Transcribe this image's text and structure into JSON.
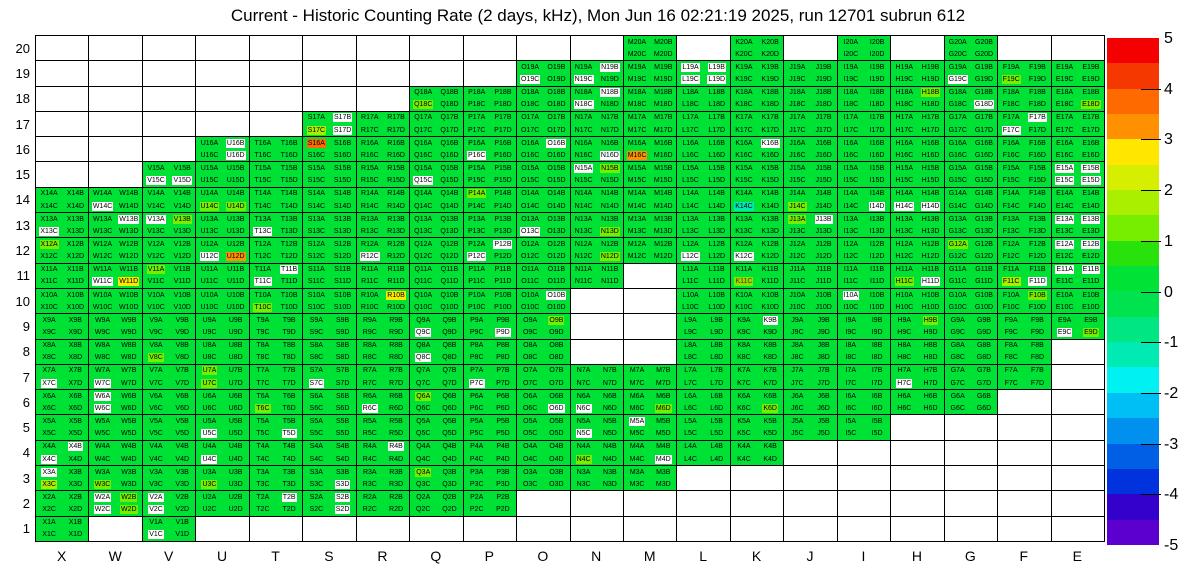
{
  "title": "Current - Historic Counting Rate (2 days, kHz), Mon Jun 16 02:21:19 2025, run 12701 subrun 612",
  "axis": {
    "x_labels": [
      "X",
      "W",
      "V",
      "U",
      "T",
      "S",
      "R",
      "Q",
      "P",
      "O",
      "N",
      "M",
      "L",
      "K",
      "J",
      "I",
      "H",
      "G",
      "F",
      "E"
    ],
    "y_labels": [
      "20",
      "19",
      "18",
      "17",
      "16",
      "15",
      "14",
      "13",
      "12",
      "11",
      "10",
      "9",
      "8",
      "7",
      "6",
      "5",
      "4",
      "3",
      "2",
      "1"
    ]
  },
  "colorbar": {
    "tick_labels": [
      "5",
      "4",
      "3",
      "2",
      "1",
      "0",
      "-1",
      "-2",
      "-3",
      "-4",
      "-5"
    ],
    "min": -5,
    "max": 5,
    "bands_top_to_bottom": [
      "#f40000",
      "#f43800",
      "#ff6a00",
      "#ff9100",
      "#ffe700",
      "#d6ef00",
      "#aaee00",
      "#77ee00",
      "#2ae20b",
      "#00e236",
      "#00e24e",
      "#00e683",
      "#00eab4",
      "#00f1f1",
      "#00bff4",
      "#0290ef",
      "#005fe4",
      "#0033dd",
      "#3300cc",
      "#5b00cf"
    ]
  },
  "grid": {
    "suffixes": [
      "A",
      "B",
      "C",
      "D"
    ],
    "default_color": "#00e136",
    "line_color": "#000000",
    "palette": {
      "white": "#ffffff",
      "chartreuse": "#77ee00",
      "yellowgreen": "#aaee00",
      "yellow": "#ffe700",
      "orange": "#ff9100",
      "deeporange": "#ff6a00",
      "cyan": "#00eab4"
    },
    "columns": [
      {
        "letter": "X",
        "rows": [
          [
            1,
            14
          ]
        ]
      },
      {
        "letter": "W",
        "rows": [
          [
            2,
            14
          ]
        ]
      },
      {
        "letter": "V",
        "rows": [
          [
            1,
            15
          ]
        ]
      },
      {
        "letter": "U",
        "rows": [
          [
            2,
            16
          ]
        ]
      },
      {
        "letter": "T",
        "rows": [
          [
            2,
            16
          ]
        ]
      },
      {
        "letter": "S",
        "rows": [
          [
            2,
            17
          ]
        ]
      },
      {
        "letter": "R",
        "rows": [
          [
            2,
            17
          ]
        ]
      },
      {
        "letter": "Q",
        "rows": [
          [
            2,
            18
          ]
        ]
      },
      {
        "letter": "P",
        "rows": [
          [
            2,
            18
          ]
        ]
      },
      {
        "letter": "O",
        "rows": [
          [
            3,
            19
          ]
        ]
      },
      {
        "letter": "N",
        "rows": [
          [
            3,
            7
          ],
          [
            11,
            19
          ]
        ]
      },
      {
        "letter": "M",
        "rows": [
          [
            3,
            7
          ],
          [
            12,
            20
          ]
        ]
      },
      {
        "letter": "L",
        "rows": [
          [
            4,
            19
          ]
        ]
      },
      {
        "letter": "K",
        "rows": [
          [
            4,
            20
          ]
        ]
      },
      {
        "letter": "J",
        "rows": [
          [
            5,
            19
          ]
        ]
      },
      {
        "letter": "I",
        "rows": [
          [
            5,
            20
          ]
        ]
      },
      {
        "letter": "H",
        "rows": [
          [
            6,
            19
          ]
        ]
      },
      {
        "letter": "G",
        "rows": [
          [
            6,
            20
          ]
        ]
      },
      {
        "letter": "F",
        "rows": [
          [
            7,
            19
          ]
        ]
      },
      {
        "letter": "E",
        "rows": [
          [
            9,
            19
          ]
        ]
      }
    ],
    "chips": {
      "white": [
        "O19C",
        "N19B",
        "N19C",
        "L19A",
        "L19B",
        "L19C",
        "L19D",
        "G19C",
        "N18B",
        "N18C",
        "G18D",
        "S17B",
        "S17D",
        "F17B",
        "F17C",
        "U16B",
        "U16D",
        "P16C",
        "O16B",
        "N16D",
        "K16B",
        "V15C",
        "V15D",
        "Q15C",
        "N15A",
        "E15A",
        "E15B",
        "E15C",
        "E15D",
        "W14C",
        "I14D",
        "H14C",
        "H14D",
        "X13C",
        "W13B",
        "V13A",
        "T13C",
        "O13C",
        "J13B",
        "E13A",
        "E13B",
        "U12C",
        "R12C",
        "P12B",
        "P12C",
        "L12C",
        "K12C",
        "E12A",
        "E12B",
        "W11C",
        "T11B",
        "T11C",
        "H11D",
        "F11D",
        "E11A",
        "E11B",
        "O10B",
        "I10A",
        "Q9C",
        "P9D",
        "K9B",
        "E9C",
        "Q8C",
        "X7C",
        "W7C",
        "S7C",
        "P7C",
        "H7C",
        "W6A",
        "W6C",
        "R6C",
        "O6D",
        "N6C",
        "U5C",
        "T5D",
        "N5C",
        "M5A",
        "X4B",
        "X4C",
        "U4C",
        "R4B",
        "M4D",
        "X3A",
        "S3D",
        "W2A",
        "W2C",
        "V2A",
        "V2C",
        "T2B",
        "S2B",
        "S2D",
        "V1C"
      ],
      "chartreuse": [
        "F19C",
        "Q18C",
        "H18B",
        "E18D",
        "U14C",
        "U14D",
        "J14C",
        "P14A",
        "N15B",
        "J13A",
        "N13D",
        "V13B",
        "X12A",
        "G12A",
        "N12D",
        "V11A",
        "H11C",
        "K11C",
        "T10C",
        "F10B",
        "O9B",
        "H9B",
        "E9D",
        "V8C",
        "U7A",
        "U7C",
        "T6C",
        "Q6A",
        "M6D",
        "K6D",
        "N4C",
        "Q3A",
        "W3C",
        "U3C",
        "W2B",
        "W2D"
      ],
      "yellowgreen": [
        "S17C",
        "F11C",
        "X3C"
      ],
      "yellow": [
        "W11D",
        "R10B"
      ],
      "orange": [
        "M16C",
        "U12D"
      ],
      "deeporange": [
        "S16A"
      ],
      "cyan": [
        "K14C"
      ]
    },
    "text_colors": {
      "K11C": "#bb0000"
    }
  },
  "chart_data": {
    "type": "heatmap",
    "title": "Current - Historic Counting Rate (2 days, kHz), Mon Jun 16 02:21:19 2025, run 12701 subrun 612",
    "x_categories": [
      "X",
      "W",
      "V",
      "U",
      "T",
      "S",
      "R",
      "Q",
      "P",
      "O",
      "N",
      "M",
      "L",
      "K",
      "J",
      "I",
      "H",
      "G",
      "F",
      "E"
    ],
    "y_categories": [
      1,
      2,
      3,
      4,
      5,
      6,
      7,
      8,
      9,
      10,
      11,
      12,
      13,
      14,
      15,
      16,
      17,
      18,
      19,
      20
    ],
    "value_scale": {
      "min": -5,
      "max": 5,
      "units": "kHz difference"
    },
    "cells_present_row_ranges": {
      "X": [
        [
          1,
          14
        ]
      ],
      "W": [
        [
          2,
          14
        ]
      ],
      "V": [
        [
          1,
          15
        ]
      ],
      "U": [
        [
          2,
          16
        ]
      ],
      "T": [
        [
          2,
          16
        ]
      ],
      "S": [
        [
          2,
          17
        ]
      ],
      "R": [
        [
          2,
          17
        ]
      ],
      "Q": [
        [
          2,
          18
        ]
      ],
      "P": [
        [
          2,
          18
        ]
      ],
      "O": [
        [
          3,
          19
        ]
      ],
      "N": [
        [
          3,
          7
        ],
        [
          11,
          19
        ]
      ],
      "M": [
        [
          3,
          7
        ],
        [
          12,
          20
        ]
      ],
      "L": [
        [
          4,
          19
        ]
      ],
      "K": [
        [
          4,
          20
        ]
      ],
      "J": [
        [
          5,
          19
        ]
      ],
      "I": [
        [
          5,
          20
        ]
      ],
      "H": [
        [
          6,
          19
        ]
      ],
      "G": [
        [
          6,
          20
        ]
      ],
      "F": [
        [
          7,
          19
        ]
      ],
      "E": [
        [
          9,
          19
        ]
      ]
    },
    "default_value": 0,
    "quadrants_per_cell": [
      "A",
      "B",
      "C",
      "D"
    ],
    "masked_no_data_quadrants": [
      "O19C",
      "N19B",
      "N19C",
      "L19A",
      "L19B",
      "L19C",
      "L19D",
      "G19C",
      "N18B",
      "N18C",
      "G18D",
      "S17B",
      "S17D",
      "F17B",
      "F17C",
      "U16B",
      "U16D",
      "P16C",
      "O16B",
      "N16D",
      "K16B",
      "V15C",
      "V15D",
      "Q15C",
      "N15A",
      "E15A",
      "E15B",
      "E15C",
      "E15D",
      "W14C",
      "I14D",
      "H14C",
      "H14D",
      "X13C",
      "W13B",
      "V13A",
      "T13C",
      "O13C",
      "J13B",
      "E13A",
      "E13B",
      "U12C",
      "R12C",
      "P12B",
      "P12C",
      "L12C",
      "K12C",
      "E12A",
      "E12B",
      "W11C",
      "T11B",
      "T11C",
      "H11D",
      "F11D",
      "E11A",
      "E11B",
      "O10B",
      "I10A",
      "Q9C",
      "P9D",
      "K9B",
      "E9C",
      "Q8C",
      "X7C",
      "W7C",
      "S7C",
      "P7C",
      "H7C",
      "W6A",
      "W6C",
      "R6C",
      "O6D",
      "N6C",
      "U5C",
      "T5D",
      "N5C",
      "M5A",
      "X4B",
      "X4C",
      "U4C",
      "R4B",
      "M4D",
      "X3A",
      "S3D",
      "W2A",
      "W2C",
      "V2A",
      "V2C",
      "T2B",
      "S2B",
      "S2D",
      "V1C"
    ],
    "anomalous_quadrant_values": {
      "F19C": 1.2,
      "Q18C": 1.2,
      "H18B": 1.2,
      "E18D": 1.2,
      "U14C": 1.2,
      "U14D": 1.2,
      "J14C": 1.2,
      "P14A": 1.2,
      "N15B": 1.2,
      "J13A": 1.2,
      "N13D": 1.2,
      "V13B": 1.2,
      "X12A": 1.2,
      "G12A": 1.2,
      "N12D": 1.2,
      "V11A": 1.2,
      "H11C": 1.2,
      "K11C": 1.2,
      "T10C": 1.2,
      "F10B": 1.2,
      "O9B": 1.2,
      "H9B": 1.2,
      "E9D": 1.2,
      "V8C": 1.2,
      "U7A": 1.2,
      "U7C": 1.2,
      "T6C": 1.2,
      "Q6A": 1.2,
      "M6D": 1.2,
      "K6D": 1.2,
      "N4C": 1.2,
      "Q3A": 1.2,
      "W3C": 1.2,
      "U3C": 1.2,
      "W2B": 1.2,
      "W2D": 1.2,
      "S17C": 1.7,
      "F11C": 1.7,
      "X3C": 1.7,
      "W11D": 2.7,
      "R10B": 2.7,
      "M16C": 3.2,
      "U12D": 3.2,
      "S16A": 3.7,
      "K14C": -1.3
    },
    "legend_position": "right colorbar, discrete 0.5-step rainbow bands"
  }
}
